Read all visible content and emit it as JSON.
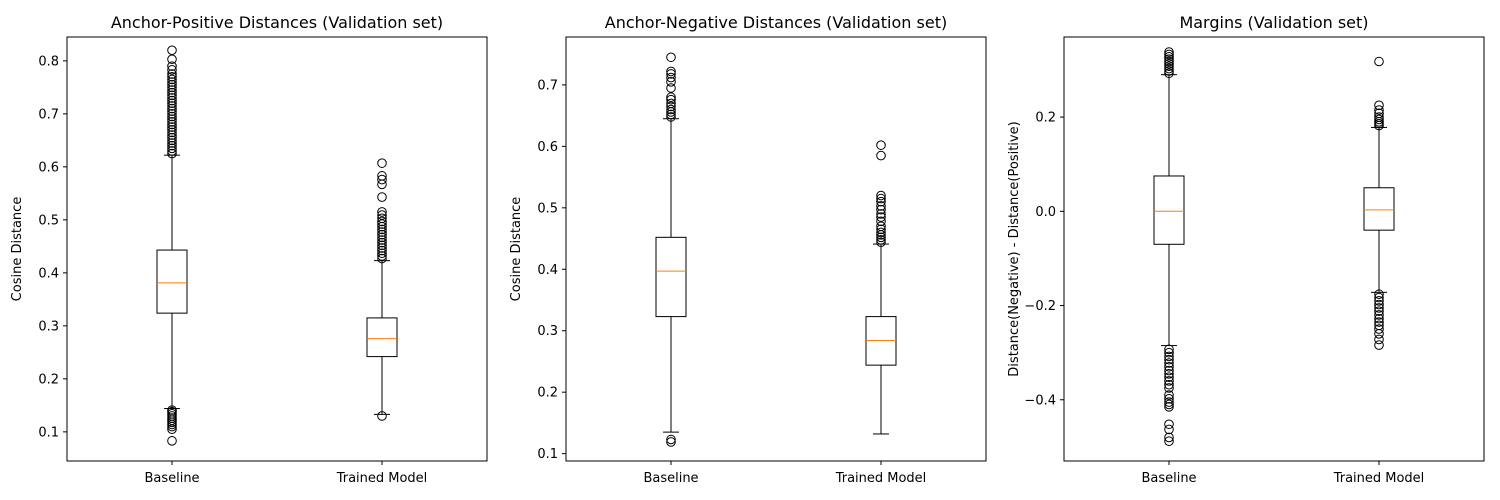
{
  "chart_data": [
    {
      "type": "box",
      "title": "Anchor-Positive Distances (Validation set)",
      "xlabel": "",
      "ylabel": "Cosine Distance",
      "ylim": [
        0.045,
        0.845
      ],
      "yticks": [
        0.1,
        0.2,
        0.3,
        0.4,
        0.5,
        0.6,
        0.7,
        0.8
      ],
      "ytick_labels": [
        "0.1",
        "0.2",
        "0.3",
        "0.4",
        "0.5",
        "0.6",
        "0.7",
        "0.8"
      ],
      "categories": [
        "Baseline",
        "Trained Model"
      ],
      "boxes": [
        {
          "whisker_low": 0.144,
          "q1": 0.324,
          "median": 0.381,
          "q3": 0.443,
          "whisker_high": 0.622,
          "outliers": [
            0.083,
            0.105,
            0.11,
            0.114,
            0.118,
            0.122,
            0.126,
            0.13,
            0.134,
            0.138,
            0.141,
            0.625,
            0.63,
            0.635,
            0.64,
            0.645,
            0.65,
            0.655,
            0.66,
            0.665,
            0.67,
            0.675,
            0.68,
            0.685,
            0.69,
            0.695,
            0.7,
            0.705,
            0.71,
            0.715,
            0.72,
            0.725,
            0.73,
            0.735,
            0.74,
            0.745,
            0.75,
            0.755,
            0.76,
            0.765,
            0.77,
            0.775,
            0.783,
            0.79,
            0.803,
            0.82
          ]
        },
        {
          "whisker_low": 0.133,
          "q1": 0.242,
          "median": 0.276,
          "q3": 0.315,
          "whisker_high": 0.423,
          "outliers": [
            0.13,
            0.427,
            0.432,
            0.437,
            0.442,
            0.447,
            0.452,
            0.457,
            0.462,
            0.467,
            0.472,
            0.477,
            0.482,
            0.487,
            0.492,
            0.497,
            0.503,
            0.509,
            0.515,
            0.543,
            0.567,
            0.576,
            0.583,
            0.607
          ]
        }
      ]
    },
    {
      "type": "box",
      "title": "Anchor-Negative Distances (Validation set)",
      "xlabel": "",
      "ylabel": "Cosine Distance",
      "ylim": [
        0.088,
        0.778
      ],
      "yticks": [
        0.1,
        0.2,
        0.3,
        0.4,
        0.5,
        0.6,
        0.7
      ],
      "ytick_labels": [
        "0.1",
        "0.2",
        "0.3",
        "0.4",
        "0.5",
        "0.6",
        "0.7"
      ],
      "categories": [
        "Baseline",
        "Trained Model"
      ],
      "boxes": [
        {
          "whisker_low": 0.135,
          "q1": 0.323,
          "median": 0.397,
          "q3": 0.452,
          "whisker_high": 0.645,
          "outliers": [
            0.119,
            0.123,
            0.648,
            0.652,
            0.656,
            0.66,
            0.665,
            0.67,
            0.676,
            0.68,
            0.695,
            0.705,
            0.712,
            0.718,
            0.722,
            0.745
          ]
        },
        {
          "whisker_low": 0.132,
          "q1": 0.244,
          "median": 0.284,
          "q3": 0.323,
          "whisker_high": 0.441,
          "outliers": [
            0.444,
            0.448,
            0.452,
            0.456,
            0.46,
            0.465,
            0.47,
            0.478,
            0.485,
            0.49,
            0.497,
            0.503,
            0.51,
            0.515,
            0.52,
            0.585,
            0.602
          ]
        }
      ]
    },
    {
      "type": "box",
      "title": "Margins (Validation set)",
      "xlabel": "",
      "ylabel": "Distance(Negative) - Distance(Positive)",
      "ylim": [
        -0.53,
        0.37
      ],
      "yticks": [
        -0.4,
        -0.2,
        0.0,
        0.2
      ],
      "ytick_labels": [
        "−0.4",
        "−0.2",
        "0.0",
        "0.2"
      ],
      "categories": [
        "Baseline",
        "Trained Model"
      ],
      "boxes": [
        {
          "whisker_low": -0.285,
          "q1": -0.07,
          "median": 0.0,
          "q3": 0.075,
          "whisker_high": 0.29,
          "outliers": [
            -0.488,
            -0.48,
            -0.463,
            -0.452,
            -0.415,
            -0.41,
            -0.405,
            -0.398,
            -0.39,
            -0.375,
            -0.368,
            -0.36,
            -0.352,
            -0.345,
            -0.338,
            -0.33,
            -0.322,
            -0.315,
            -0.308,
            -0.3,
            -0.293,
            0.293,
            0.298,
            0.303,
            0.308,
            0.313,
            0.318,
            0.323,
            0.328,
            0.333,
            0.338
          ]
        },
        {
          "whisker_low": -0.172,
          "q1": -0.04,
          "median": 0.003,
          "q3": 0.05,
          "whisker_high": 0.178,
          "outliers": [
            -0.284,
            -0.272,
            -0.26,
            -0.25,
            -0.242,
            -0.235,
            -0.228,
            -0.22,
            -0.212,
            -0.205,
            -0.198,
            -0.19,
            -0.183,
            -0.176,
            0.182,
            0.186,
            0.19,
            0.195,
            0.2,
            0.208,
            0.215,
            0.225,
            0.318
          ]
        }
      ]
    }
  ]
}
